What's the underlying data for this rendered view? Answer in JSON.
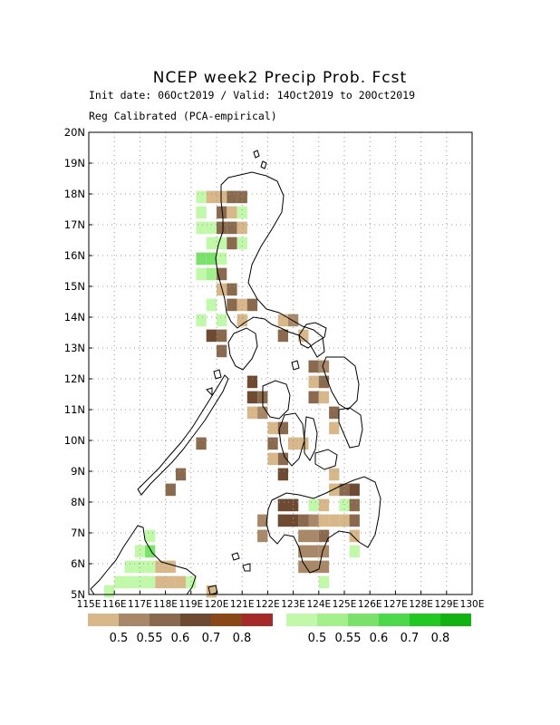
{
  "header": {
    "title": "NCEP week2 Precip Prob. Fcst",
    "subtitle1": "Init date: 06Oct2019 / Valid: 14Oct2019 to 20Oct2019",
    "subtitle2": "Reg Calibrated (PCA-empirical)"
  },
  "axes": {
    "x_ticks": [
      "115E",
      "116E",
      "117E",
      "118E",
      "119E",
      "120E",
      "121E",
      "122E",
      "123E",
      "124E",
      "125E",
      "126E",
      "127E",
      "128E",
      "129E",
      "130E"
    ],
    "y_ticks": [
      "5N",
      "6N",
      "7N",
      "8N",
      "9N",
      "10N",
      "11N",
      "12N",
      "13N",
      "14N",
      "15N",
      "16N",
      "17N",
      "18N",
      "19N",
      "20N"
    ]
  },
  "legend": {
    "dry": {
      "labels": [
        "0.5",
        "0.55",
        "0.6",
        "0.7",
        "0.8"
      ],
      "colors": [
        "#d8b88a",
        "#a88868",
        "#8a6a4e",
        "#6e4a32",
        "#8a4818",
        "#a52a2a"
      ]
    },
    "wet": {
      "labels": [
        "0.5",
        "0.55",
        "0.6",
        "0.7",
        "0.8"
      ],
      "colors": [
        "#c2f8aa",
        "#a4f08c",
        "#7ae26a",
        "#4cd84a",
        "#22c822",
        "#12b212"
      ]
    }
  },
  "map": {
    "colors": {
      "dry1": "#d8b88a",
      "dry2": "#a88868",
      "dry3": "#8a6a4e",
      "dry4": "#6e4a32",
      "wet1": "#c2f8aa",
      "wet2": "#a4f08c",
      "wet3": "#7ae26a"
    },
    "cells": [
      {
        "lon": 119.4,
        "lat": 17.9,
        "c": "wet1"
      },
      {
        "lon": 119.4,
        "lat": 17.4,
        "c": "wet1"
      },
      {
        "lon": 119.8,
        "lat": 17.9,
        "c": "dry1"
      },
      {
        "lon": 120.2,
        "lat": 17.9,
        "c": "dry1"
      },
      {
        "lon": 120.6,
        "lat": 17.9,
        "c": "dry3"
      },
      {
        "lon": 121.0,
        "lat": 17.9,
        "c": "dry3"
      },
      {
        "lon": 120.2,
        "lat": 17.4,
        "c": "dry3"
      },
      {
        "lon": 120.6,
        "lat": 17.4,
        "c": "dry1"
      },
      {
        "lon": 120.2,
        "lat": 16.9,
        "c": "dry3"
      },
      {
        "lon": 120.6,
        "lat": 16.9,
        "c": "dry3"
      },
      {
        "lon": 121.0,
        "lat": 16.9,
        "c": "dry1"
      },
      {
        "lon": 121.0,
        "lat": 17.4,
        "c": "wet1"
      },
      {
        "lon": 119.8,
        "lat": 16.9,
        "c": "wet1"
      },
      {
        "lon": 119.4,
        "lat": 16.9,
        "c": "wet1"
      },
      {
        "lon": 119.8,
        "lat": 16.4,
        "c": "wet1"
      },
      {
        "lon": 120.2,
        "lat": 16.4,
        "c": "wet1"
      },
      {
        "lon": 120.6,
        "lat": 16.4,
        "c": "dry3"
      },
      {
        "lon": 121.0,
        "lat": 16.4,
        "c": "wet1"
      },
      {
        "lon": 119.8,
        "lat": 15.9,
        "c": "wet3"
      },
      {
        "lon": 119.4,
        "lat": 15.9,
        "c": "wet3"
      },
      {
        "lon": 120.2,
        "lat": 15.9,
        "c": "wet1"
      },
      {
        "lon": 119.4,
        "lat": 15.4,
        "c": "wet1"
      },
      {
        "lon": 119.8,
        "lat": 15.4,
        "c": "wet2"
      },
      {
        "lon": 120.2,
        "lat": 15.4,
        "c": "dry3"
      },
      {
        "lon": 120.2,
        "lat": 14.9,
        "c": "dry1"
      },
      {
        "lon": 120.6,
        "lat": 14.9,
        "c": "dry3"
      },
      {
        "lon": 120.6,
        "lat": 14.4,
        "c": "dry3"
      },
      {
        "lon": 121.0,
        "lat": 14.4,
        "c": "dry1"
      },
      {
        "lon": 121.4,
        "lat": 14.4,
        "c": "dry3"
      },
      {
        "lon": 119.8,
        "lat": 14.4,
        "c": "wet1"
      },
      {
        "lon": 120.2,
        "lat": 13.9,
        "c": "wet1"
      },
      {
        "lon": 119.4,
        "lat": 13.9,
        "c": "wet1"
      },
      {
        "lon": 119.8,
        "lat": 13.4,
        "c": "dry4"
      },
      {
        "lon": 120.2,
        "lat": 13.4,
        "c": "dry3"
      },
      {
        "lon": 120.2,
        "lat": 12.9,
        "c": "dry3"
      },
      {
        "lon": 121.0,
        "lat": 13.9,
        "c": "dry1"
      },
      {
        "lon": 122.6,
        "lat": 13.9,
        "c": "dry1"
      },
      {
        "lon": 123.0,
        "lat": 13.9,
        "c": "dry2"
      },
      {
        "lon": 123.4,
        "lat": 13.4,
        "c": "dry1"
      },
      {
        "lon": 122.6,
        "lat": 13.4,
        "c": "dry3"
      },
      {
        "lon": 123.8,
        "lat": 12.4,
        "c": "dry3"
      },
      {
        "lon": 124.2,
        "lat": 12.4,
        "c": "dry2"
      },
      {
        "lon": 123.8,
        "lat": 11.9,
        "c": "dry1"
      },
      {
        "lon": 124.2,
        "lat": 11.9,
        "c": "dry3"
      },
      {
        "lon": 123.8,
        "lat": 11.4,
        "c": "dry3"
      },
      {
        "lon": 124.2,
        "lat": 11.4,
        "c": "dry1"
      },
      {
        "lon": 124.6,
        "lat": 10.9,
        "c": "dry3"
      },
      {
        "lon": 124.6,
        "lat": 10.4,
        "c": "dry1"
      },
      {
        "lon": 121.4,
        "lat": 11.9,
        "c": "dry4"
      },
      {
        "lon": 121.4,
        "lat": 11.4,
        "c": "dry4"
      },
      {
        "lon": 121.8,
        "lat": 11.4,
        "c": "dry3"
      },
      {
        "lon": 121.4,
        "lat": 10.9,
        "c": "dry1"
      },
      {
        "lon": 121.8,
        "lat": 10.9,
        "c": "dry2"
      },
      {
        "lon": 122.2,
        "lat": 10.4,
        "c": "dry1"
      },
      {
        "lon": 122.6,
        "lat": 10.4,
        "c": "dry3"
      },
      {
        "lon": 122.2,
        "lat": 9.9,
        "c": "dry3"
      },
      {
        "lon": 123.0,
        "lat": 9.9,
        "c": "dry1"
      },
      {
        "lon": 122.6,
        "lat": 9.4,
        "c": "dry3"
      },
      {
        "lon": 122.2,
        "lat": 9.4,
        "c": "dry1"
      },
      {
        "lon": 123.4,
        "lat": 9.9,
        "c": "dry1"
      },
      {
        "lon": 122.6,
        "lat": 8.9,
        "c": "dry4"
      },
      {
        "lon": 124.6,
        "lat": 8.9,
        "c": "dry1"
      },
      {
        "lon": 125.0,
        "lat": 8.4,
        "c": "dry3"
      },
      {
        "lon": 125.4,
        "lat": 8.4,
        "c": "dry4"
      },
      {
        "lon": 125.0,
        "lat": 7.9,
        "c": "wet1"
      },
      {
        "lon": 125.4,
        "lat": 7.9,
        "c": "dry3"
      },
      {
        "lon": 124.6,
        "lat": 8.4,
        "c": "dry1"
      },
      {
        "lon": 124.2,
        "lat": 7.9,
        "c": "dry1"
      },
      {
        "lon": 123.8,
        "lat": 7.9,
        "c": "wet1"
      },
      {
        "lon": 122.6,
        "lat": 7.9,
        "c": "dry4"
      },
      {
        "lon": 123.0,
        "lat": 7.9,
        "c": "dry4"
      },
      {
        "lon": 122.6,
        "lat": 7.4,
        "c": "dry4"
      },
      {
        "lon": 123.0,
        "lat": 7.4,
        "c": "dry4"
      },
      {
        "lon": 123.4,
        "lat": 7.4,
        "c": "dry3"
      },
      {
        "lon": 123.8,
        "lat": 7.4,
        "c": "dry2"
      },
      {
        "lon": 124.2,
        "lat": 7.4,
        "c": "dry1"
      },
      {
        "lon": 124.6,
        "lat": 7.4,
        "c": "dry1"
      },
      {
        "lon": 125.0,
        "lat": 7.4,
        "c": "dry1"
      },
      {
        "lon": 125.4,
        "lat": 7.4,
        "c": "dry3"
      },
      {
        "lon": 121.8,
        "lat": 7.4,
        "c": "dry2"
      },
      {
        "lon": 121.8,
        "lat": 6.9,
        "c": "dry2"
      },
      {
        "lon": 123.4,
        "lat": 6.9,
        "c": "dry2"
      },
      {
        "lon": 123.8,
        "lat": 6.9,
        "c": "dry2"
      },
      {
        "lon": 124.2,
        "lat": 6.9,
        "c": "dry3"
      },
      {
        "lon": 125.4,
        "lat": 6.9,
        "c": "dry1"
      },
      {
        "lon": 125.4,
        "lat": 6.4,
        "c": "wet1"
      },
      {
        "lon": 123.4,
        "lat": 6.4,
        "c": "dry2"
      },
      {
        "lon": 123.8,
        "lat": 6.4,
        "c": "dry2"
      },
      {
        "lon": 124.2,
        "lat": 6.4,
        "c": "dry2"
      },
      {
        "lon": 123.4,
        "lat": 5.9,
        "c": "dry2"
      },
      {
        "lon": 123.8,
        "lat": 5.9,
        "c": "dry2"
      },
      {
        "lon": 124.2,
        "lat": 5.9,
        "c": "dry2"
      },
      {
        "lon": 124.2,
        "lat": 5.4,
        "c": "wet1"
      },
      {
        "lon": 119.4,
        "lat": 9.9,
        "c": "dry3"
      },
      {
        "lon": 118.6,
        "lat": 8.9,
        "c": "dry3"
      },
      {
        "lon": 118.2,
        "lat": 8.4,
        "c": "dry3"
      },
      {
        "lon": 117.4,
        "lat": 6.9,
        "c": "wet1"
      },
      {
        "lon": 117.4,
        "lat": 6.4,
        "c": "wet3"
      },
      {
        "lon": 117.0,
        "lat": 6.4,
        "c": "wet1"
      },
      {
        "lon": 117.0,
        "lat": 5.9,
        "c": "wet1"
      },
      {
        "lon": 116.6,
        "lat": 5.9,
        "c": "wet1"
      },
      {
        "lon": 117.4,
        "lat": 5.9,
        "c": "wet1"
      },
      {
        "lon": 116.6,
        "lat": 5.4,
        "c": "wet1"
      },
      {
        "lon": 116.2,
        "lat": 5.4,
        "c": "wet1"
      },
      {
        "lon": 117.0,
        "lat": 5.4,
        "c": "wet1"
      },
      {
        "lon": 117.4,
        "lat": 5.4,
        "c": "wet1"
      },
      {
        "lon": 117.8,
        "lat": 5.9,
        "c": "dry1"
      },
      {
        "lon": 118.2,
        "lat": 5.9,
        "c": "dry1"
      },
      {
        "lon": 117.8,
        "lat": 5.4,
        "c": "dry1"
      },
      {
        "lon": 118.2,
        "lat": 5.4,
        "c": "dry1"
      },
      {
        "lon": 118.6,
        "lat": 5.4,
        "c": "dry1"
      },
      {
        "lon": 119.0,
        "lat": 5.4,
        "c": "wet1"
      },
      {
        "lon": 115.8,
        "lat": 5.1,
        "c": "wet1"
      },
      {
        "lon": 119.8,
        "lat": 5.1,
        "c": "dry1"
      }
    ]
  }
}
